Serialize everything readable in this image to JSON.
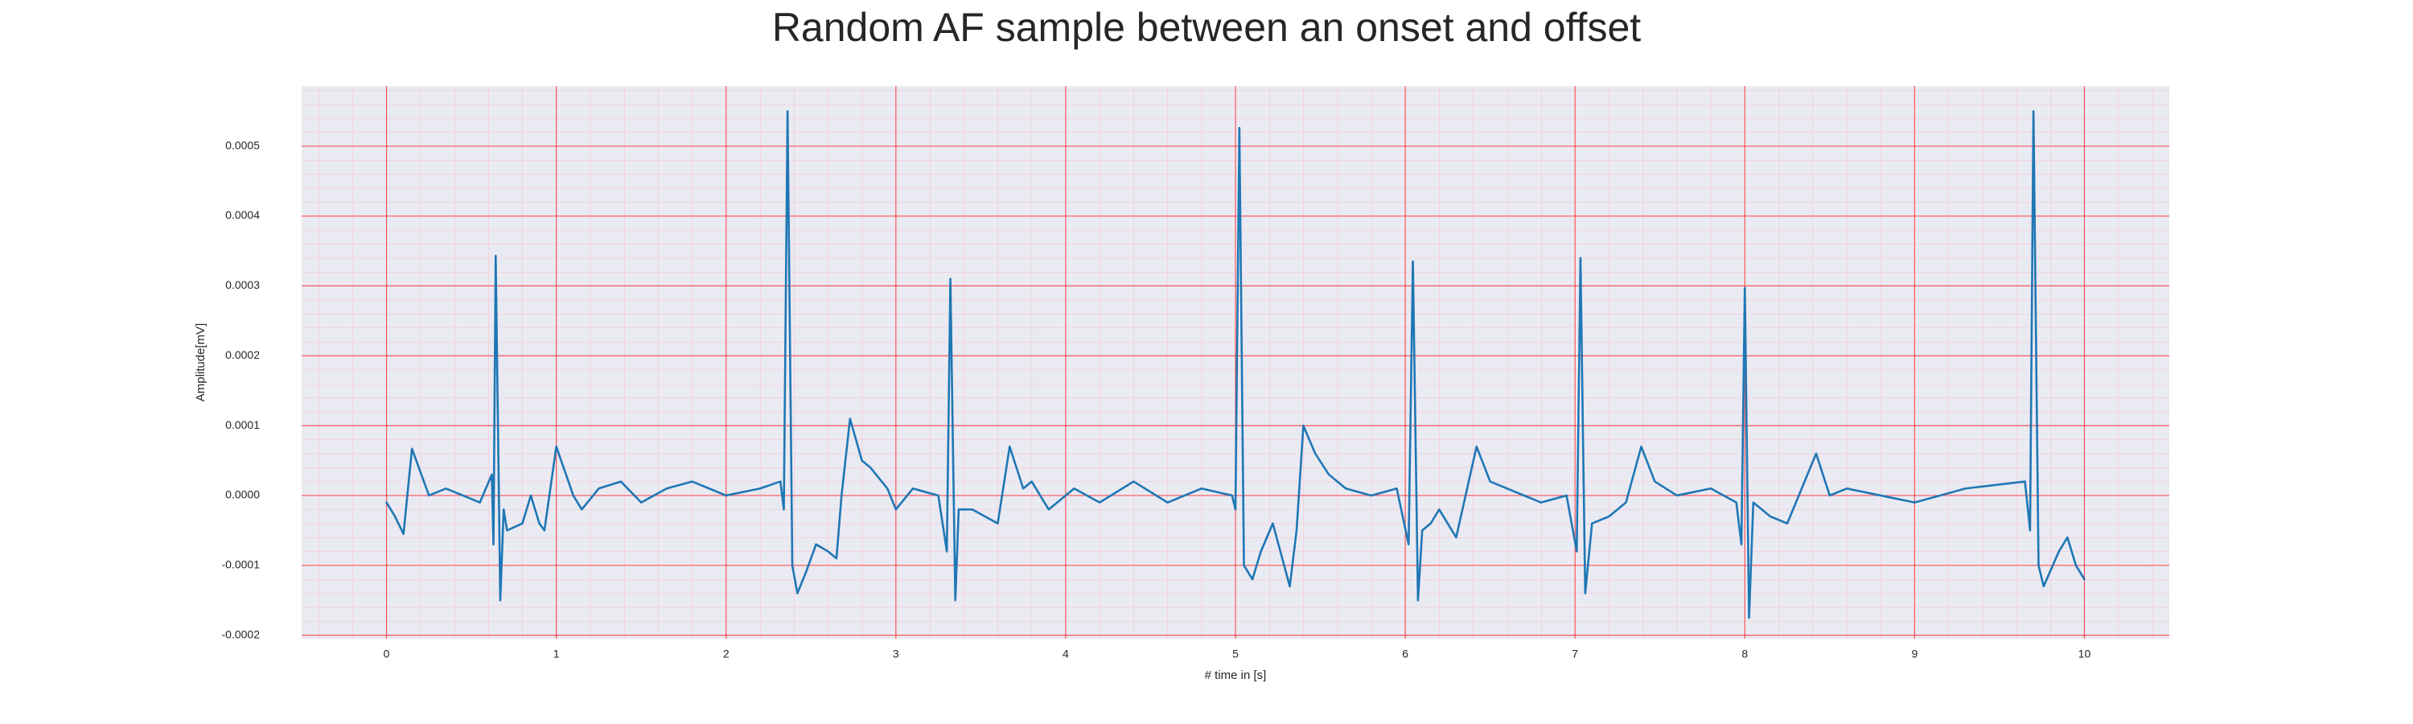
{
  "chart_data": {
    "type": "line",
    "title": "Random AF sample between an onset and offset",
    "x_label": "# time in [s]",
    "y_label": "Amplitude[mV]",
    "color": "#1f77b4",
    "grid": true,
    "grid_color": "#ff0000",
    "minor_grid_color": "#ffb3c6",
    "background": "#eaeaf2",
    "xlim": [
      -0.5,
      10.5
    ],
    "ylim": [
      -0.000205,
      0.000586
    ],
    "xticks": [
      0,
      1,
      2,
      3,
      4,
      5,
      6,
      7,
      8,
      9,
      10
    ],
    "yticks": [
      -0.0002,
      -0.0001,
      {
        "value": 0,
        "label": "0.0000"
      },
      0.0001,
      0.0002,
      0.0003,
      0.0004,
      0.0005
    ],
    "x": [
      0,
      0.05,
      0.1,
      0.15,
      0.25,
      0.35,
      0.45,
      0.55,
      0.62,
      0.63,
      0.643,
      0.67,
      0.69,
      0.71,
      0.8,
      0.85,
      0.9,
      0.93,
      1.0,
      1.1,
      1.15,
      1.25,
      1.38,
      1.5,
      1.65,
      1.8,
      2.0,
      2.2,
      2.32,
      2.34,
      2.362,
      2.39,
      2.42,
      2.47,
      2.53,
      2.6,
      2.65,
      2.68,
      2.73,
      2.8,
      2.85,
      2.95,
      3.0,
      3.1,
      3.25,
      3.3,
      3.321,
      3.35,
      3.37,
      3.45,
      3.6,
      3.67,
      3.75,
      3.8,
      3.9,
      4.05,
      4.2,
      4.4,
      4.6,
      4.8,
      4.98,
      5.0,
      5.023,
      5.05,
      5.1,
      5.15,
      5.22,
      5.32,
      5.36,
      5.4,
      5.47,
      5.55,
      5.65,
      5.8,
      5.95,
      6.02,
      6.045,
      6.075,
      6.1,
      6.15,
      6.2,
      6.3,
      6.42,
      6.5,
      6.6,
      6.8,
      6.95,
      7.01,
      7.032,
      7.06,
      7.1,
      7.2,
      7.3,
      7.39,
      7.47,
      7.6,
      7.8,
      7.95,
      7.98,
      8.0,
      8.025,
      8.05,
      8.15,
      8.25,
      8.42,
      8.5,
      8.6,
      8.8,
      9.0,
      9.3,
      9.65,
      9.68,
      9.7,
      9.73,
      9.76,
      9.85,
      9.9,
      9.95,
      10.0
    ],
    "values": [
      -1e-05,
      -3e-05,
      -5.5e-05,
      6.7e-05,
      0.0,
      1e-05,
      0.0,
      -1e-05,
      3e-05,
      -7e-05,
      0.000343,
      -0.00015,
      -2e-05,
      -5e-05,
      -4e-05,
      0.0,
      -4e-05,
      -5e-05,
      7e-05,
      0.0,
      -2e-05,
      1e-05,
      2e-05,
      -1e-05,
      1e-05,
      2e-05,
      0.0,
      1e-05,
      2e-05,
      -2e-05,
      0.00055,
      -0.0001,
      -0.00014,
      -0.00011,
      -7e-05,
      -8e-05,
      -9e-05,
      0.0,
      0.00011,
      5e-05,
      4e-05,
      1e-05,
      -2e-05,
      1e-05,
      0.0,
      -8e-05,
      0.00031,
      -0.00015,
      -2e-05,
      -2e-05,
      -4e-05,
      7e-05,
      1e-05,
      2e-05,
      -2e-05,
      1e-05,
      -1e-05,
      2e-05,
      -1e-05,
      1e-05,
      0.0,
      -2e-05,
      0.000526,
      -0.0001,
      -0.00012,
      -8e-05,
      -4e-05,
      -0.00013,
      -5e-05,
      0.0001,
      6e-05,
      3e-05,
      1e-05,
      0.0,
      1e-05,
      -7e-05,
      0.000335,
      -0.00015,
      -5e-05,
      -4e-05,
      -2e-05,
      -6e-05,
      7e-05,
      2e-05,
      1e-05,
      -1e-05,
      0.0,
      -8e-05,
      0.00034,
      -0.00014,
      -4e-05,
      -3e-05,
      -1e-05,
      7e-05,
      2e-05,
      0.0,
      1e-05,
      -1e-05,
      -7e-05,
      0.000297,
      -0.000175,
      -1e-05,
      -3e-05,
      -4e-05,
      6e-05,
      0.0,
      1e-05,
      0.0,
      -1e-05,
      1e-05,
      2e-05,
      -5e-05,
      0.00055,
      -0.0001,
      -0.00013,
      -8e-05,
      -6e-05,
      -0.0001,
      -0.00012
    ]
  }
}
